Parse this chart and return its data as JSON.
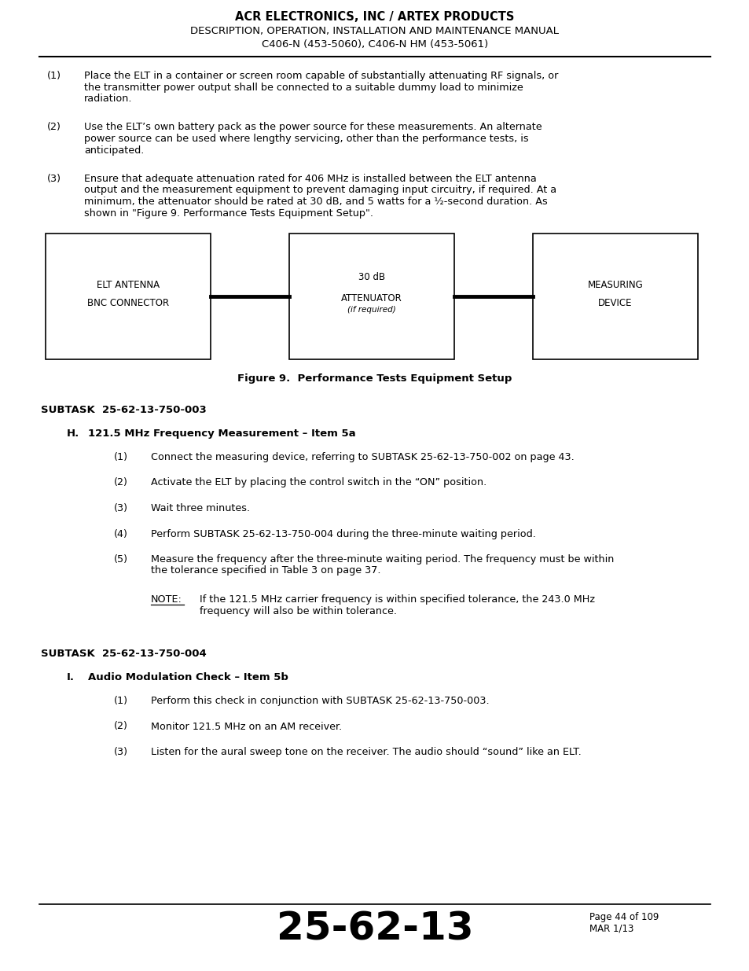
{
  "bg_color": "#ffffff",
  "header_title": "ACR ELECTRONICS, INC / ARTEX PRODUCTS",
  "header_line2": "DESCRIPTION, OPERATION, INSTALLATION AND MAINTENANCE MANUAL",
  "header_line3": "C406-N (453-5060), C406-N HM (453-5061)",
  "body_paragraphs": [
    {
      "num": "(1)",
      "text": "Place the ELT in a container or screen room capable of substantially attenuating RF signals, or\nthe transmitter power output shall be connected to a suitable dummy load to minimize\nradiation."
    },
    {
      "num": "(2)",
      "text": "Use the ELT’s own battery pack as the power source for these measurements. An alternate\npower source can be used where lengthy servicing, other than the performance tests, is\nanticipated."
    },
    {
      "num": "(3)",
      "text": "Ensure that adequate attenuation rated for 406 MHz is installed between the ELT antenna\noutput and the measurement equipment to prevent damaging input circuitry, if required. At a\nminimum, the attenuator should be rated at 30 dB, and 5 watts for a ½-second duration. As\nshown in \"Figure 9. Performance Tests Equipment Setup\"."
    }
  ],
  "figure_caption": "Figure 9.  Performance Tests Equipment Setup",
  "subtask1": "SUBTASK  25-62-13-750-003",
  "section_H_title_num": "H.",
  "section_H_title_text": "121.5 MHz Frequency Measurement – Item 5a",
  "section_H_items": [
    {
      "num": "(1)",
      "text": "Connect the measuring device, referring to SUBTASK 25-62-13-750-002 on page 43."
    },
    {
      "num": "(2)",
      "text": "Activate the ELT by placing the control switch in the “ON” position."
    },
    {
      "num": "(3)",
      "text": "Wait three minutes."
    },
    {
      "num": "(4)",
      "text": "Perform SUBTASK 25-62-13-750-004 during the three-minute waiting period."
    },
    {
      "num": "(5)",
      "text": "Measure the frequency after the three-minute waiting period. The frequency must be within\nthe tolerance specified in Table 3 on page 37."
    }
  ],
  "note_label": "NOTE:",
  "note_text": "If the 121.5 MHz carrier frequency is within specified tolerance, the 243.0 MHz\nfrequency will also be within tolerance.",
  "subtask2": "SUBTASK  25-62-13-750-004",
  "section_I_title_num": "I.",
  "section_I_title_text": "Audio Modulation Check – Item 5b",
  "section_I_items": [
    {
      "num": "(1)",
      "text": "Perform this check in conjunction with SUBTASK 25-62-13-750-003."
    },
    {
      "num": "(2)",
      "text": "Monitor 121.5 MHz on an AM receiver."
    },
    {
      "num": "(3)",
      "text": "Listen for the aural sweep tone on the receiver. The audio should “sound” like an ELT."
    }
  ],
  "footer_page_code": "25-62-13",
  "footer_page_num": "Page 44 of 109",
  "footer_date": "MAR 1/13"
}
